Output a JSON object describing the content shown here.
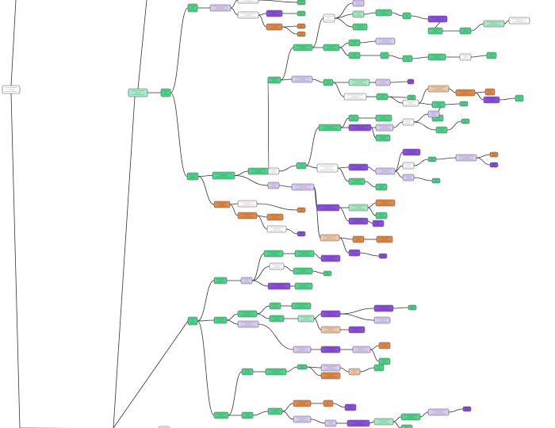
{
  "diagram": {
    "type": "tree",
    "orientation": "left-to-right",
    "node_colors": {
      "g": "#4ad98a",
      "lg": "#a6eec6",
      "l": "#dccdf7",
      "p": "#8d4fe3",
      "o": "#e88a43",
      "lo": "#f5caa6",
      "w": "#ffffff"
    },
    "node_border_color": "#555555",
    "edge_color": "#333333"
  }
}
